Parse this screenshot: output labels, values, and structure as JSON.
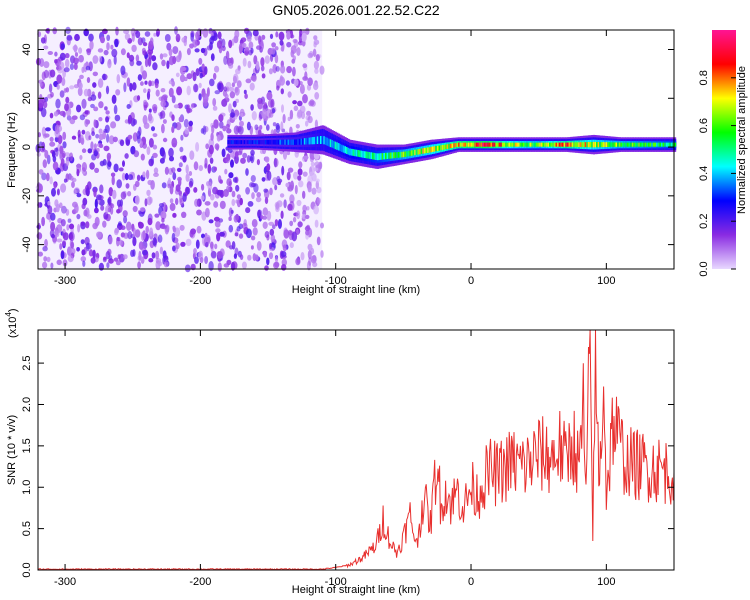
{
  "title": "GN05.2026.001.22.52.C22",
  "chart_data": [
    {
      "type": "heatmap",
      "xlabel": "Height of straight line (km)",
      "ylabel": "Frequency (Hz)",
      "xlim": [
        -320,
        150
      ],
      "ylim": [
        -50,
        48
      ],
      "x_ticks": [
        -300,
        -200,
        -100,
        0,
        100
      ],
      "y_ticks": [
        -40,
        -20,
        0,
        20,
        40
      ],
      "colorbar": {
        "label": "Normalized spectral amplitude",
        "range": [
          0,
          1
        ],
        "ticks": [
          0.0,
          0.2,
          0.4,
          0.6,
          0.8
        ],
        "colormap": [
          "#e8d8ff",
          "#8a2be2",
          "#0000ff",
          "#00ffff",
          "#00ff00",
          "#ffff00",
          "#ff0000",
          "#ff1493"
        ]
      },
      "noise_region_x": [
        -320,
        -110
      ],
      "band": [
        {
          "x": -180,
          "f": 2,
          "width": 3,
          "amp": 0.25
        },
        {
          "x": -160,
          "f": 2,
          "width": 3,
          "amp": 0.25
        },
        {
          "x": -130,
          "f": 2,
          "width": 4,
          "amp": 0.3
        },
        {
          "x": -110,
          "f": 3,
          "width": 6,
          "amp": 0.35
        },
        {
          "x": -90,
          "f": -2,
          "width": 5,
          "amp": 0.4
        },
        {
          "x": -70,
          "f": -4,
          "width": 5,
          "amp": 0.45
        },
        {
          "x": -50,
          "f": -3,
          "width": 4,
          "amp": 0.55
        },
        {
          "x": -30,
          "f": -1,
          "width": 4,
          "amp": 0.6
        },
        {
          "x": -10,
          "f": 1,
          "width": 3,
          "amp": 0.7
        },
        {
          "x": 10,
          "f": 1,
          "width": 3,
          "amp": 0.75
        },
        {
          "x": 30,
          "f": 1,
          "width": 3,
          "amp": 0.6
        },
        {
          "x": 50,
          "f": 1,
          "width": 3,
          "amp": 0.55
        },
        {
          "x": 70,
          "f": 1,
          "width": 3,
          "amp": 0.7
        },
        {
          "x": 90,
          "f": 1,
          "width": 4,
          "amp": 0.6
        },
        {
          "x": 110,
          "f": 1,
          "width": 3,
          "amp": 0.55
        },
        {
          "x": 130,
          "f": 1,
          "width": 3,
          "amp": 0.5
        },
        {
          "x": 150,
          "f": 1,
          "width": 3,
          "amp": 0.45
        }
      ]
    },
    {
      "type": "line",
      "xlabel": "Height of straight line (km)",
      "ylabel": "SNR (10 * v/v)",
      "y_multiplier": "(x10^4)",
      "xlim": [
        -320,
        150
      ],
      "ylim": [
        0,
        2.9
      ],
      "x_ticks": [
        -300,
        -200,
        -100,
        0,
        100
      ],
      "y_ticks": [
        0.0,
        0.5,
        1.0,
        1.5,
        2.0,
        2.5
      ],
      "y_tick_labels": [
        "0.0",
        "0.5",
        "1.0",
        "1.5",
        "2.0",
        "2.5"
      ],
      "color": "#e8302e",
      "series": [
        {
          "x": [
            -320,
            -300,
            -250,
            -200,
            -150,
            -120,
            -110,
            -100,
            -90,
            -80,
            -70,
            -65,
            -60,
            -55,
            -50,
            -45,
            -40,
            -35,
            -30,
            -25,
            -22,
            -20,
            -15,
            -10,
            -5,
            0,
            5,
            10,
            15,
            20,
            30,
            40,
            50,
            60,
            65,
            70,
            75,
            80,
            83,
            85,
            88,
            90,
            92,
            95,
            98,
            100,
            105,
            110,
            115,
            120,
            130,
            140,
            150
          ],
          "y": [
            0.01,
            0.01,
            0.01,
            0.01,
            0.01,
            0.01,
            0.01,
            0.03,
            0.06,
            0.15,
            0.3,
            0.62,
            0.35,
            0.2,
            0.4,
            0.65,
            0.3,
            0.9,
            0.55,
            1.35,
            0.7,
            1.0,
            0.8,
            0.95,
            0.75,
            1.0,
            0.9,
            1.1,
            1.2,
            1.15,
            1.3,
            1.25,
            1.4,
            1.35,
            1.5,
            1.3,
            1.6,
            1.2,
            2.0,
            0.8,
            2.85,
            0.5,
            2.3,
            1.0,
            2.5,
            0.9,
            1.8,
            1.5,
            1.3,
            1.28,
            1.25,
            1.22,
            1.18
          ]
        }
      ]
    }
  ]
}
